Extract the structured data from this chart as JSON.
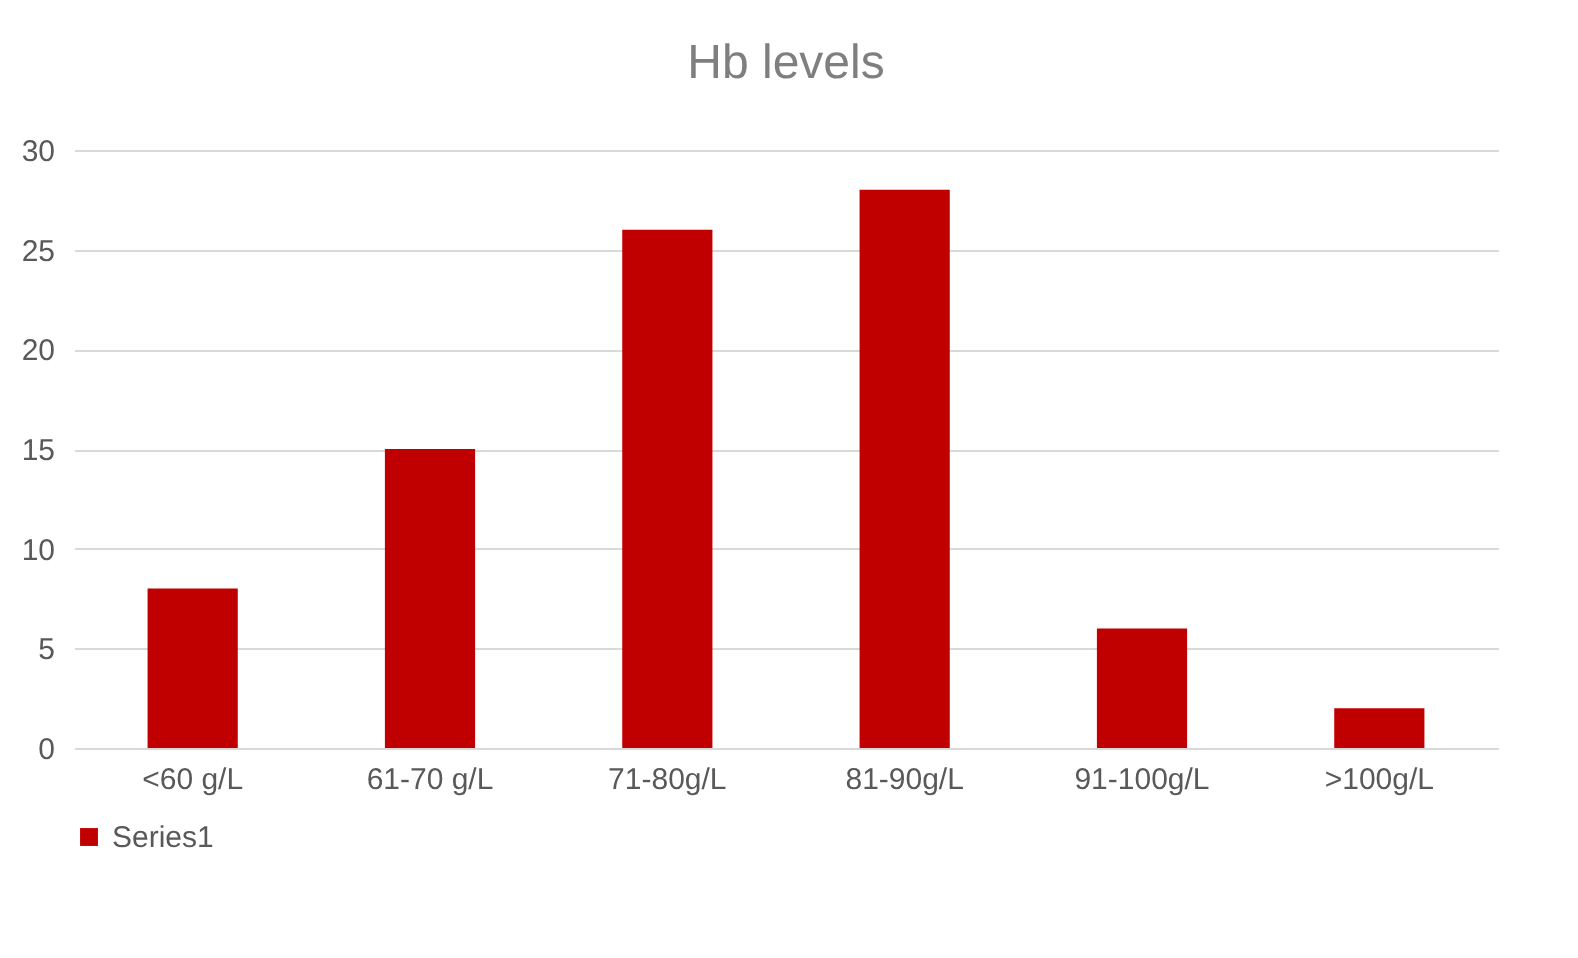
{
  "chart_data": {
    "type": "bar",
    "title": "Hb levels",
    "categories": [
      "<60 g/L",
      "61-70 g/L",
      "71-80g/L",
      "81-90g/L",
      "91-100g/L",
      ">100g/L"
    ],
    "series": [
      {
        "name": "Series1",
        "color": "#c00000",
        "values": [
          8,
          15,
          26,
          28,
          6,
          2
        ]
      }
    ],
    "ylim": [
      0,
      30
    ],
    "yticks": [
      0,
      5,
      10,
      15,
      20,
      25,
      30
    ],
    "grid": "y",
    "legend": "bottom"
  }
}
